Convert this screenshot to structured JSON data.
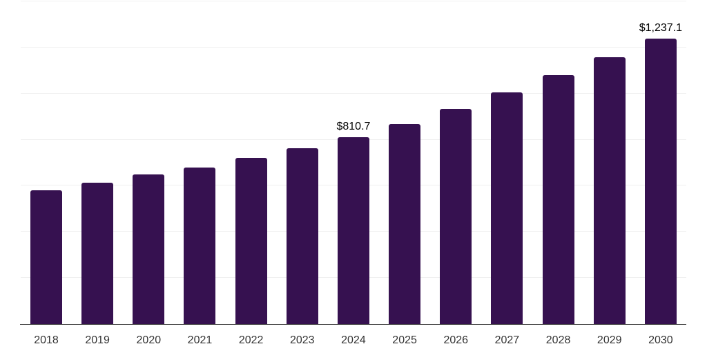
{
  "chart_data": {
    "type": "bar",
    "title": "",
    "xlabel": "",
    "ylabel": "",
    "categories": [
      "2018",
      "2019",
      "2020",
      "2021",
      "2022",
      "2023",
      "2024",
      "2025",
      "2026",
      "2027",
      "2028",
      "2029",
      "2030"
    ],
    "values": [
      580,
      613,
      648,
      678,
      720,
      763,
      810.7,
      868,
      934,
      1004,
      1079,
      1157,
      1237.1
    ],
    "data_labels": [
      "",
      "",
      "",
      "",
      "",
      "",
      "$810.7",
      "",
      "",
      "",
      "",
      "",
      "$1,237.1"
    ],
    "ylim": [
      0,
      1400
    ],
    "gridline_step": 200,
    "grid": true,
    "legend": false,
    "colors": {
      "bar": "#361150",
      "gridline": "#f0f0f0",
      "axis_line": "#333333",
      "tick_label": "#333333",
      "value_label": "#000000",
      "background": "#ffffff"
    }
  }
}
